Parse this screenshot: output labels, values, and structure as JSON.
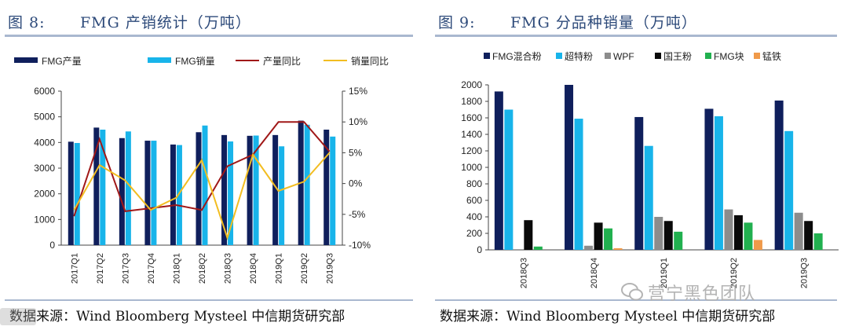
{
  "left_panel": {
    "figure_label": "图 8:",
    "title": "FMG 产销统计（万吨）",
    "source": "数据来源：Wind Bloomberg Mysteel 中信期货研究部"
  },
  "right_panel": {
    "figure_label": "图 9:",
    "title": "FMG 分品种销量（万吨）",
    "source": "数据来源：Wind Bloomberg Mysteel 中信期货研究部"
  },
  "watermark": "营宁黑色团队",
  "colors": {
    "navy": "#0f1f5c",
    "sky": "#18b4ea",
    "red": "#a01818",
    "yellow": "#f2bd21",
    "gray": "#8c8c8c",
    "black": "#0a0a0a",
    "green": "#21b04f",
    "orange": "#f09a4a",
    "accent": "#2d4a7a"
  },
  "chart_data": [
    {
      "type": "bar",
      "title": "FMG 产销统计（万吨）",
      "categories": [
        "2017Q1",
        "2017Q2",
        "2017Q3",
        "2017Q4",
        "2018Q1",
        "2018Q2",
        "2018Q3",
        "2018Q4",
        "2019Q1",
        "2019Q2",
        "2019Q3"
      ],
      "series": [
        {
          "name": "FMG产量",
          "kind": "bar",
          "axis": "left",
          "color": "#0f1f5c",
          "values": [
            4030,
            4580,
            4170,
            4070,
            3920,
            4400,
            4290,
            4260,
            4290,
            4850,
            4500
          ]
        },
        {
          "name": "FMG销量",
          "kind": "bar",
          "axis": "left",
          "color": "#18b4ea",
          "values": [
            3980,
            4500,
            4430,
            4070,
            3900,
            4660,
            4040,
            4270,
            3850,
            4690,
            4230
          ]
        },
        {
          "name": "产量同比",
          "kind": "line",
          "axis": "right",
          "color": "#a01818",
          "values": [
            -5.3,
            7.2,
            -4.5,
            -4.0,
            -3.5,
            -4.3,
            2.8,
            4.7,
            10.0,
            10.0,
            5.2
          ]
        },
        {
          "name": "销量同比",
          "kind": "line",
          "axis": "right",
          "color": "#f2bd21",
          "values": [
            -4.3,
            3.0,
            0.5,
            -4.3,
            -2.3,
            3.8,
            -8.8,
            4.7,
            -1.2,
            0.3,
            5.0
          ]
        }
      ],
      "ylim": [
        0,
        6000
      ],
      "yticks": [
        "0",
        "1000",
        "2000",
        "3000",
        "4000",
        "5000",
        "6000"
      ],
      "y2lim": [
        -10,
        15
      ],
      "y2ticks": [
        "-10%",
        "-5%",
        "0%",
        "5%",
        "10%",
        "15%"
      ],
      "legend": "top"
    },
    {
      "type": "bar",
      "title": "FMG 分品种销量（万吨）",
      "categories": [
        "2018Q3",
        "2018Q4",
        "2019Q1",
        "2019Q2",
        "2019Q3"
      ],
      "series": [
        {
          "name": "FMG混合粉",
          "color": "#0f1f5c",
          "values": [
            1920,
            2000,
            1610,
            1710,
            1810
          ]
        },
        {
          "name": "超特粉",
          "color": "#18b4ea",
          "values": [
            1700,
            1590,
            1260,
            1620,
            1440
          ]
        },
        {
          "name": "WPF",
          "color": "#8c8c8c",
          "values": [
            0,
            50,
            400,
            490,
            450
          ]
        },
        {
          "name": "国王粉",
          "color": "#0a0a0a",
          "values": [
            360,
            330,
            350,
            420,
            350
          ]
        },
        {
          "name": "FMG块",
          "color": "#21b04f",
          "values": [
            40,
            260,
            220,
            330,
            200
          ]
        },
        {
          "name": "锰铁",
          "color": "#f09a4a",
          "values": [
            0,
            20,
            0,
            120,
            0
          ]
        }
      ],
      "ylim": [
        0,
        2000
      ],
      "yticks": [
        "0",
        "200",
        "400",
        "600",
        "800",
        "1000",
        "1200",
        "1400",
        "1600",
        "1800",
        "2000"
      ],
      "legend": "top"
    }
  ]
}
